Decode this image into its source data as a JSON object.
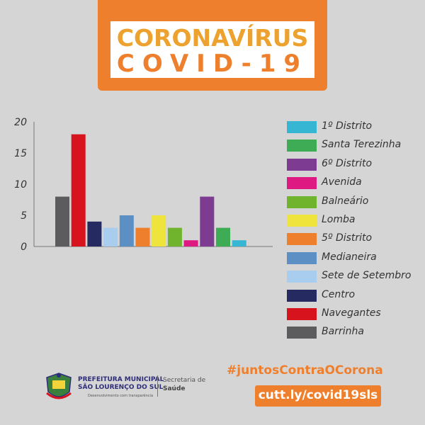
{
  "header": {
    "line1": "CORONAVÍRUS",
    "line2": "COVID-19"
  },
  "chart_data": {
    "type": "bar",
    "categories": [
      "Barrinha",
      "Navegantes",
      "Centro",
      "Sete de Setembro",
      "Medianeira",
      "5º Distrito",
      "Lomba",
      "Balneário",
      "Avenida",
      "6º Distrito",
      "Santa Terezinha",
      "1º Distrito"
    ],
    "values": [
      8,
      18,
      4,
      3,
      5,
      3,
      5,
      3,
      1,
      8,
      3,
      1
    ],
    "colors": [
      "#5c5b5e",
      "#d7141d",
      "#252a61",
      "#a9cdef",
      "#5c8fc3",
      "#ee7f2d",
      "#eee43b",
      "#70b42d",
      "#de1982",
      "#7d3c92",
      "#3eac55",
      "#36b6d2"
    ],
    "title": "",
    "xlabel": "",
    "ylabel": "",
    "ylim": [
      0,
      20
    ],
    "yticks": [
      "0",
      "5",
      "10",
      "15",
      "20"
    ],
    "grid": false,
    "legend_position": "right"
  },
  "legend": [
    {
      "label": "1º Distrito",
      "color": "#36b6d2"
    },
    {
      "label": "Santa Terezinha",
      "color": "#3eac55"
    },
    {
      "label": "6º Distrito",
      "color": "#7d3c92"
    },
    {
      "label": "Avenida",
      "color": "#de1982"
    },
    {
      "label": "Balneário",
      "color": "#70b42d"
    },
    {
      "label": "Lomba",
      "color": "#eee43b"
    },
    {
      "label": "5º Distrito",
      "color": "#ee7f2d"
    },
    {
      "label": "Medianeira",
      "color": "#5c8fc3"
    },
    {
      "label": "Sete de Setembro",
      "color": "#a9cdef"
    },
    {
      "label": "Centro",
      "color": "#252a61"
    },
    {
      "label": "Navegantes",
      "color": "#d7141d"
    },
    {
      "label": "Barrinha",
      "color": "#5c5b5e"
    }
  ],
  "footer": {
    "prefeitura_line1": "PREFEITURA MUNICIPAL",
    "prefeitura_line2": "SÃO LOURENÇO DO SUL",
    "prefeitura_tagline": "Desenvolvimento com transparência",
    "secretaria_line1": "Secretaria de",
    "secretaria_line2": "Saúde",
    "hashtag": "#juntosContraOCorona",
    "link": "cutt.ly/covid19sls"
  }
}
